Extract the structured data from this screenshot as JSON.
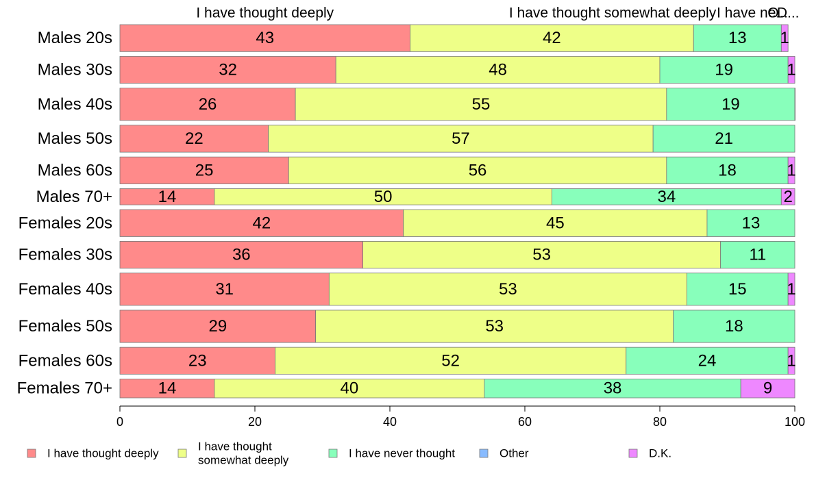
{
  "chart_data": {
    "type": "bar",
    "orientation": "horizontal",
    "stacked": true,
    "categories": [
      "Males 20s",
      "Males 30s",
      "Males 40s",
      "Males 50s",
      "Males 60s",
      "Males 70+",
      "Females 20s",
      "Females 30s",
      "Females 40s",
      "Females 50s",
      "Females 60s",
      "Females 70+"
    ],
    "series": [
      {
        "name": "I have thought deeply",
        "color": "#FF8A8A",
        "values": [
          43,
          32,
          26,
          22,
          25,
          14,
          42,
          36,
          31,
          29,
          23,
          14
        ],
        "labels": [
          "43",
          "32",
          "26",
          "22",
          "25",
          "14",
          "42",
          "36",
          "31",
          "29",
          "23",
          "14"
        ]
      },
      {
        "name": "I have thought somewhat deeply",
        "color": "#EEFF88",
        "values": [
          42,
          48,
          55,
          57,
          56,
          50,
          45,
          53,
          53,
          53,
          52,
          40
        ],
        "labels": [
          "42",
          "48",
          "55",
          "57",
          "56",
          "50",
          "45",
          "53",
          "53",
          "53",
          "52",
          "40"
        ]
      },
      {
        "name": "I have never thought",
        "color": "#88FFBB",
        "values": [
          13,
          19,
          19,
          21,
          18,
          34,
          13,
          11,
          15,
          18,
          24,
          38
        ],
        "labels": [
          "13",
          "19",
          "19",
          "21",
          "18",
          "34",
          "13",
          "11",
          "15",
          "18",
          "24",
          "38"
        ]
      },
      {
        "name": "Other",
        "color": "#88BBFF",
        "values": [
          0,
          0,
          0.5,
          0,
          0,
          0,
          0,
          0,
          0,
          0,
          0,
          0
        ],
        "labels": [
          "",
          "",
          "",
          "",
          "",
          "",
          "",
          "",
          "",
          "",
          "",
          ""
        ]
      },
      {
        "name": "D.K.",
        "color": "#EE88FF",
        "values": [
          1,
          1,
          0,
          0,
          1,
          2,
          0,
          0,
          1,
          0,
          1,
          9
        ],
        "labels": [
          "1",
          "1",
          "",
          "",
          "1",
          "2",
          "",
          "",
          "1",
          "",
          "1",
          "9"
        ]
      }
    ],
    "relative_bar_heights": [
      1,
      1,
      1.2,
      1,
      1,
      0.6,
      1,
      1,
      1.2,
      1.2,
      1,
      0.7
    ],
    "top_labels": [
      "I have thought deeply",
      "I have thought somewhat deeply",
      "I have ne...",
      "O",
      "D..."
    ],
    "xlim": [
      0,
      100
    ],
    "xticks": [
      "0",
      "20",
      "40",
      "60",
      "80",
      "100"
    ],
    "legend": {
      "position": "bottom",
      "entries": [
        {
          "lines": [
            "I have thought deeply"
          ],
          "color": "#FF8A8A"
        },
        {
          "lines": [
            "I have thought",
            "somewhat deeply"
          ],
          "color": "#EEFF88"
        },
        {
          "lines": [
            "I have never thought"
          ],
          "color": "#88FFBB"
        },
        {
          "lines": [
            "Other"
          ],
          "color": "#88BBFF"
        },
        {
          "lines": [
            "D.K."
          ],
          "color": "#EE88FF"
        }
      ]
    },
    "grid": false
  }
}
